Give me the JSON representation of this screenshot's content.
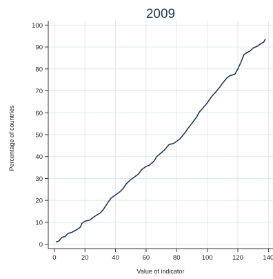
{
  "chart_data": {
    "type": "line",
    "title": "2009",
    "xlabel": "Value of indicator",
    "ylabel": "Percentage of countries",
    "xlim": [
      -4,
      143
    ],
    "ylim": [
      -2,
      102
    ],
    "xticks": [
      0,
      20,
      40,
      60,
      80,
      100,
      120,
      140
    ],
    "yticks": [
      0,
      10,
      20,
      30,
      40,
      50,
      60,
      70,
      80,
      90,
      100
    ],
    "grid": true,
    "line_color": "#1f3a5f",
    "grid_color": "#dde9f1",
    "title_color": "#1a3b63",
    "series": [
      {
        "x": [
          1,
          3,
          5,
          7,
          9,
          11,
          13,
          15,
          17,
          18,
          20,
          23,
          25,
          27,
          30,
          32,
          35,
          37,
          40,
          43,
          45,
          47,
          50,
          52,
          55,
          57,
          60,
          62,
          65,
          67,
          70,
          72,
          75,
          78,
          80,
          82,
          85,
          87,
          90,
          93,
          95,
          97,
          100,
          103,
          105,
          108,
          110,
          113,
          115,
          118,
          120,
          122,
          124,
          126,
          128,
          130,
          133,
          135,
          137,
          138
        ],
        "y": [
          1,
          1.5,
          3.2,
          3.5,
          5,
          5.3,
          6,
          6.8,
          7.8,
          9.5,
          10.5,
          11,
          12,
          13,
          14.3,
          15.8,
          19,
          21,
          22.5,
          24,
          25.5,
          27.5,
          29.5,
          30.5,
          32,
          34,
          35.5,
          36,
          37.8,
          40,
          41.8,
          43,
          45.5,
          46,
          47,
          48,
          50.5,
          52.5,
          55.2,
          58,
          60.5,
          62,
          64.5,
          67.5,
          69,
          71.5,
          73.5,
          76,
          77,
          77.5,
          80,
          83,
          86.5,
          87.5,
          88.2,
          89.5,
          90.5,
          91.5,
          92.3,
          93.7
        ]
      }
    ]
  }
}
